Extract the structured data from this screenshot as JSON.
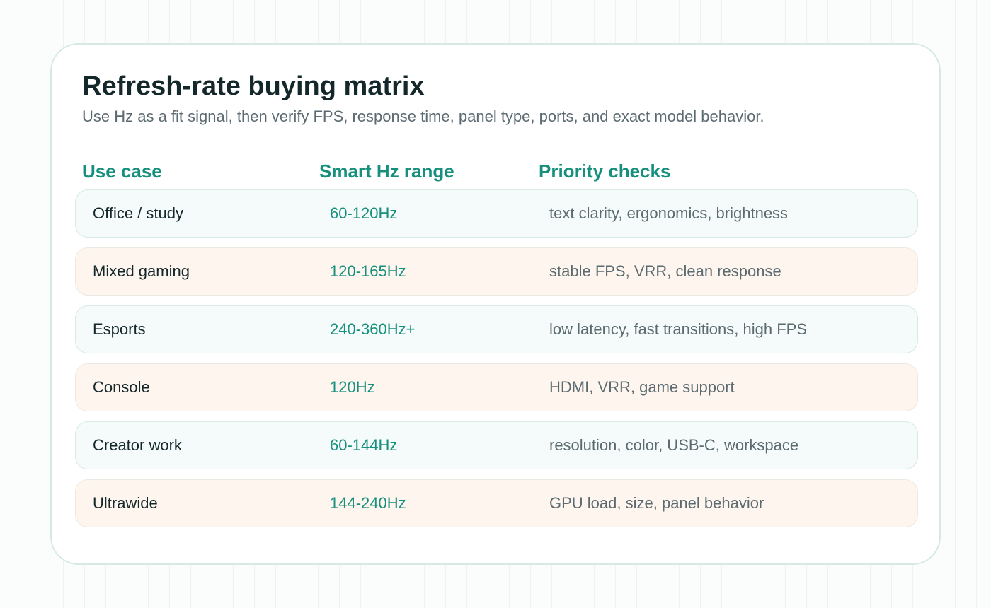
{
  "title": "Refresh-rate buying matrix",
  "subtitle": "Use Hz as a fit signal, then verify FPS, response time, panel type, ports, and exact model behavior.",
  "columns": {
    "use_case": "Use case",
    "hz_range": "Smart Hz range",
    "checks": "Priority checks"
  },
  "rows": [
    {
      "use_case": "Office / study",
      "hz_range": "60-120Hz",
      "checks": "text clarity, ergonomics, brightness"
    },
    {
      "use_case": "Mixed gaming",
      "hz_range": "120-165Hz",
      "checks": "stable FPS, VRR, clean response"
    },
    {
      "use_case": "Esports",
      "hz_range": "240-360Hz+",
      "checks": "low latency, fast transitions, high FPS"
    },
    {
      "use_case": "Console",
      "hz_range": "120Hz",
      "checks": "HDMI, VRR, game support"
    },
    {
      "use_case": "Creator work",
      "hz_range": "60-144Hz",
      "checks": "resolution, color, USB-C, workspace"
    },
    {
      "use_case": "Ultrawide",
      "hz_range": "144-240Hz",
      "checks": "GPU load, size, panel behavior"
    }
  ],
  "colors": {
    "accent": "#168f7d",
    "title": "#14272b",
    "muted": "#5c6b71",
    "row_mint": "#f4fbfa",
    "row_peach": "#fef6ee"
  }
}
